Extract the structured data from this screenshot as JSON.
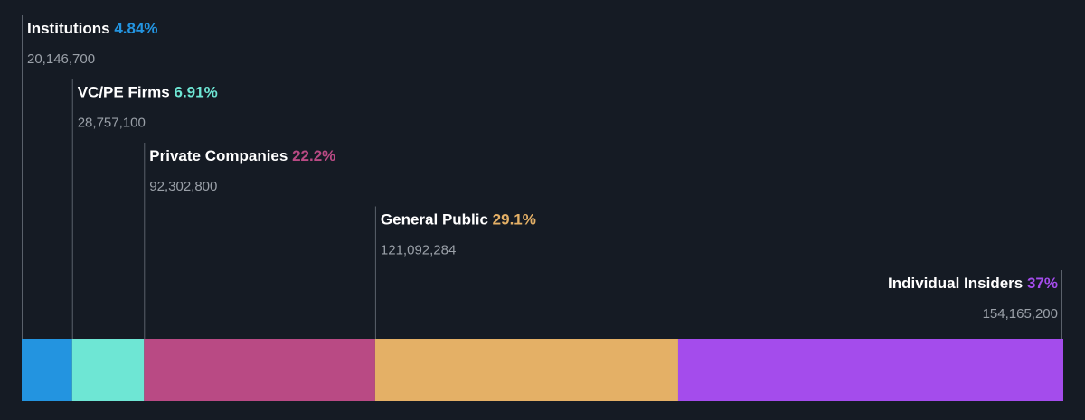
{
  "chart_data": {
    "type": "bar",
    "orientation": "horizontal-stacked",
    "categories": [
      "Institutions",
      "VC/PE Firms",
      "Private Companies",
      "General Public",
      "Individual Insiders"
    ],
    "series": [
      {
        "values": [
          4.84,
          6.91,
          22.2,
          29.1,
          37
        ],
        "shares": [
          20146700,
          28757100,
          92302800,
          121092284,
          154165200
        ],
        "percent_labels": [
          "4.84%",
          "6.91%",
          "22.2%",
          "29.1%",
          "37%"
        ],
        "share_labels": [
          "20,146,700",
          "28,757,100",
          "92,302,800",
          "121,092,284",
          "154,165,200"
        ],
        "colors": [
          "#2394e0",
          "#6ee6d4",
          "#b94a84",
          "#e4b066",
          "#a44cec"
        ]
      }
    ],
    "grid": false,
    "legend": "none"
  }
}
